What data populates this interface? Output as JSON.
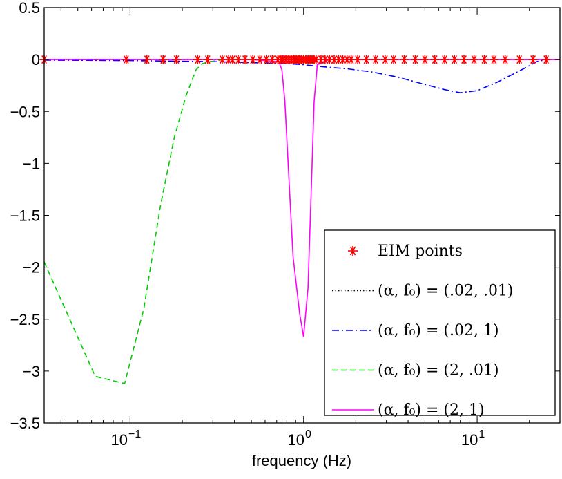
{
  "chart_data": {
    "type": "line",
    "title": "",
    "xlabel": "frequency (Hz)",
    "ylabel": "",
    "xscale": "log",
    "xlim": [
      0.032,
      30
    ],
    "ylim": [
      -3.5,
      0.5
    ],
    "grid": false,
    "legend_position": "bottom-right",
    "y_ticks": [
      {
        "value": 0.5,
        "label": "0.5"
      },
      {
        "value": 0,
        "label": "0"
      },
      {
        "value": -0.5,
        "label": "−0.5"
      },
      {
        "value": -1,
        "label": "−1"
      },
      {
        "value": -1.5,
        "label": "−1.5"
      },
      {
        "value": -2,
        "label": "−2"
      },
      {
        "value": -2.5,
        "label": "−2.5"
      },
      {
        "value": -3,
        "label": "−3"
      },
      {
        "value": -3.5,
        "label": "−3.5"
      }
    ],
    "x_ticks": [
      {
        "value": 0.1,
        "base": "10",
        "exp": "−1"
      },
      {
        "value": 1,
        "base": "10",
        "exp": "0"
      },
      {
        "value": 10,
        "base": "10",
        "exp": "1"
      }
    ],
    "legend": [
      {
        "label": "EIM points",
        "marker": "asterisk",
        "color": "#ff0000"
      },
      {
        "label": "(α, f₀) = (.02, .01)",
        "dash": "dotted",
        "color": "#000000"
      },
      {
        "label": "(α, f₀) = (.02, 1)",
        "dash": "dashdot",
        "color": "#0000ff"
      },
      {
        "label": "(α, f₀) = (2, .01)",
        "dash": "dashed",
        "color": "#00cc00"
      },
      {
        "label": "(α, f₀) = (2, 1)",
        "dash": "solid",
        "color": "#ff00ff"
      }
    ],
    "series": [
      {
        "dash": "dotted",
        "color": "#000000",
        "x": [
          0.032,
          0.1,
          1,
          10,
          30
        ],
        "y": [
          0,
          0,
          0,
          0,
          0
        ]
      },
      {
        "dash": "dashdot",
        "color": "#0000ff",
        "x": [
          0.032,
          0.1,
          0.3,
          0.5,
          0.8,
          1,
          1.3,
          1.8,
          2.5,
          3.5,
          5,
          6.5,
          8,
          10,
          13,
          17,
          20,
          22,
          25,
          30
        ],
        "y": [
          -0.005,
          -0.01,
          -0.02,
          -0.03,
          -0.04,
          -0.05,
          -0.07,
          -0.09,
          -0.12,
          -0.17,
          -0.24,
          -0.29,
          -0.32,
          -0.3,
          -0.22,
          -0.12,
          -0.06,
          -0.02,
          0,
          0
        ]
      },
      {
        "dash": "dashed",
        "color": "#00cc00",
        "x": [
          0.032,
          0.063,
          0.093,
          0.12,
          0.15,
          0.18,
          0.21,
          0.24,
          0.26,
          0.29,
          0.35,
          1,
          10,
          30
        ],
        "y": [
          -1.95,
          -3.05,
          -3.12,
          -2.4,
          -1.4,
          -0.75,
          -0.35,
          -0.1,
          -0.04,
          -0.02,
          0,
          0,
          0,
          0
        ]
      },
      {
        "dash": "solid",
        "color": "#ff00ff",
        "x": [
          0.032,
          0.5,
          0.72,
          0.75,
          0.78,
          0.82,
          0.87,
          0.95,
          1.0,
          1.06,
          1.11,
          1.15,
          1.2,
          1.4,
          10,
          30
        ],
        "y": [
          0,
          0,
          -0.02,
          -0.1,
          -0.4,
          -1.1,
          -1.9,
          -2.45,
          -2.67,
          -2.2,
          -1.2,
          -0.4,
          -0.05,
          0,
          0,
          0
        ]
      }
    ],
    "eim_points": {
      "color": "#ff0000",
      "y": 0,
      "x": [
        0.032,
        0.095,
        0.125,
        0.155,
        0.185,
        0.245,
        0.28,
        0.34,
        0.37,
        0.39,
        0.42,
        0.46,
        0.51,
        0.56,
        0.61,
        0.66,
        0.71,
        0.74,
        0.76,
        0.79,
        0.82,
        0.85,
        0.88,
        0.91,
        0.94,
        0.97,
        1.0,
        1.03,
        1.06,
        1.09,
        1.12,
        1.15,
        1.18,
        1.26,
        1.33,
        1.41,
        1.5,
        1.59,
        1.68,
        1.78,
        1.88,
        2.05,
        2.3,
        2.6,
        2.95,
        3.3,
        3.8,
        4.4,
        5.0,
        5.7,
        6.5,
        7.4,
        8.4,
        9.6,
        11,
        12.5,
        14.5,
        17.5,
        21,
        25
      ]
    }
  }
}
